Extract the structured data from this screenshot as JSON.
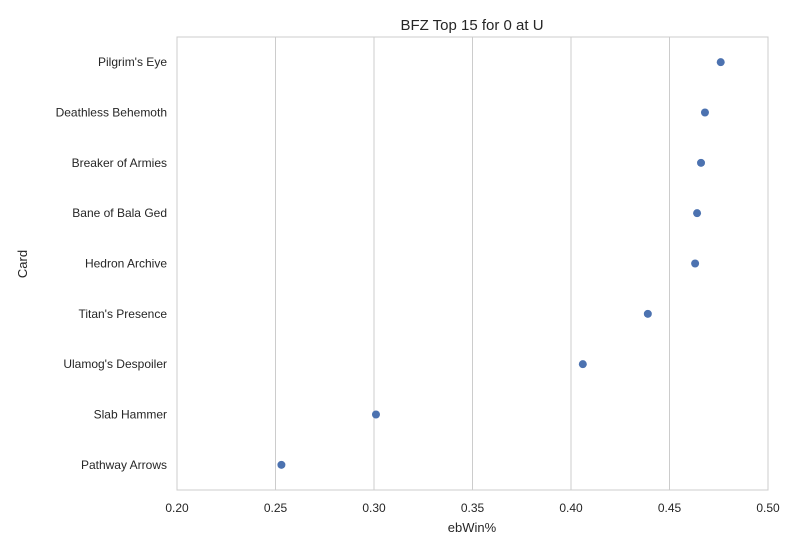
{
  "chart_data": {
    "type": "scatter",
    "title": "BFZ Top 15 for 0 at U",
    "xlabel": "ebWin%",
    "ylabel": "Card",
    "xlim": [
      0.2,
      0.5
    ],
    "xticks": [
      "0.20",
      "0.25",
      "0.30",
      "0.35",
      "0.40",
      "0.45",
      "0.50"
    ],
    "grid": "vertical",
    "marker_color": "#4c72b0",
    "categories": [
      "Pilgrim's Eye",
      "Deathless Behemoth",
      "Breaker of Armies",
      "Bane of Bala Ged",
      "Hedron Archive",
      "Titan's Presence",
      "Ulamog's Despoiler",
      "Slab Hammer",
      "Pathway Arrows"
    ],
    "values": [
      0.476,
      0.468,
      0.466,
      0.464,
      0.463,
      0.439,
      0.406,
      0.301,
      0.253
    ]
  }
}
